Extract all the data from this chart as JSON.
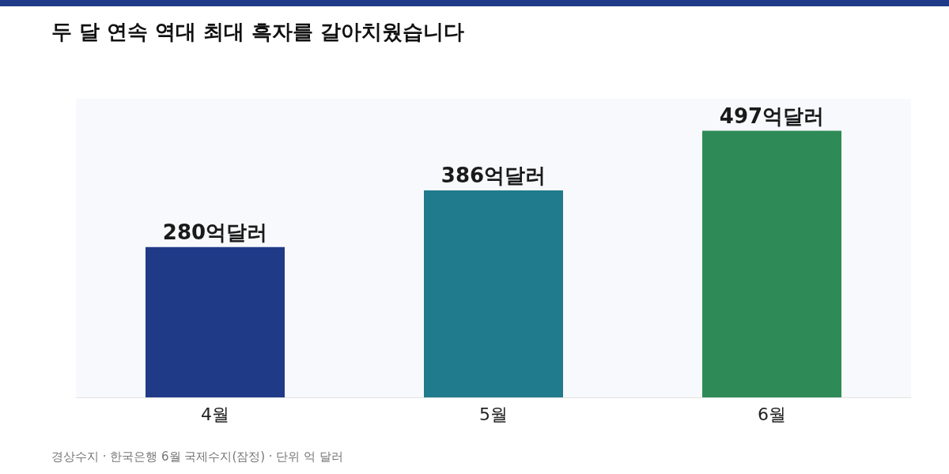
{
  "chart_data": {
    "type": "bar",
    "title": "두 달 연속 역대 최대 흑자를 갈아치웠습니다",
    "categories": [
      "4월",
      "5월",
      "6월"
    ],
    "values": [
      280,
      386,
      497
    ],
    "colors": [
      "#1f3a87",
      "#207b8c",
      "#2e8b57"
    ],
    "value_labels": [
      "280억달러",
      "386억달러",
      "497억달러"
    ],
    "annotations": [
      "경상수지 · 한국은행 6월 국제수지(잠정) · 단위 억 달러"
    ]
  }
}
